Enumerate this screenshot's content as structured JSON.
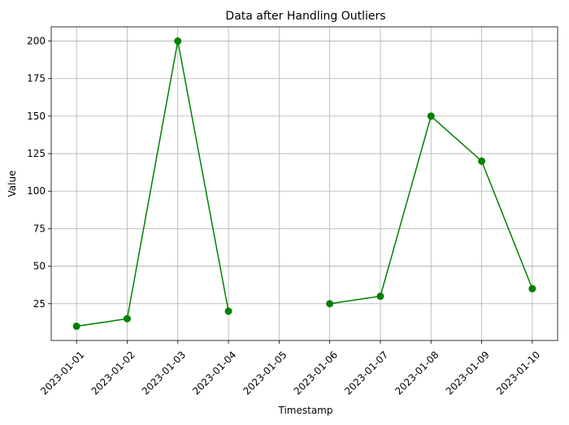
{
  "chart_data": {
    "type": "line",
    "title": "Data after Handling Outliers",
    "xlabel": "Timestamp",
    "ylabel": "Value",
    "x": [
      "2023-01-01",
      "2023-01-02",
      "2023-01-03",
      "2023-01-04",
      "2023-01-05",
      "2023-01-06",
      "2023-01-07",
      "2023-01-08",
      "2023-01-09",
      "2023-01-10"
    ],
    "series": [
      {
        "values": [
          10,
          15,
          200,
          20,
          null,
          25,
          30,
          150,
          120,
          35
        ],
        "color": "#008000",
        "marker": "circle"
      }
    ],
    "ylim": [
      0.5,
      209.5
    ],
    "yticks": [
      25,
      50,
      75,
      100,
      125,
      150,
      175,
      200
    ],
    "ytick_labels": [
      "25",
      "50",
      "75",
      "100",
      "125",
      "150",
      "175",
      "200"
    ],
    "xtick_rotation": 45,
    "grid": true,
    "legend": "none"
  }
}
